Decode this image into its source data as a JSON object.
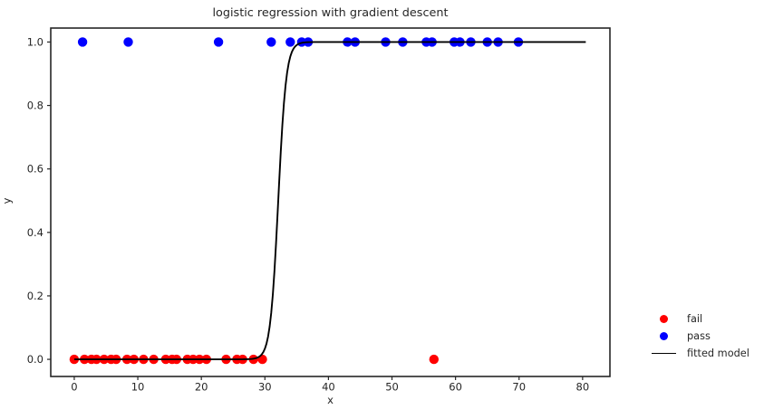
{
  "figure": {
    "title": "logistic regression with gradient descent",
    "xlabel": "x",
    "ylabel": "y"
  },
  "legend": {
    "position": "outside-right",
    "items": [
      {
        "label": "fail",
        "marker": "dot",
        "color": "#ff0000"
      },
      {
        "label": "pass",
        "marker": "dot",
        "color": "#0000ff"
      },
      {
        "label": "fitted model",
        "marker": "line",
        "color": "#000000"
      }
    ]
  },
  "chart_data": {
    "type": "scatter",
    "title": "logistic regression with gradient descent",
    "xlabel": "x",
    "ylabel": "y",
    "xlim": [
      -3.7,
      84.3
    ],
    "ylim": [
      -0.054,
      1.044
    ],
    "xticks": [
      0,
      10,
      20,
      30,
      40,
      50,
      60,
      70,
      80
    ],
    "xtick_labels": [
      "0",
      "10",
      "20",
      "30",
      "40",
      "50",
      "60",
      "70",
      "80"
    ],
    "yticks": [
      0.0,
      0.2,
      0.4,
      0.6,
      0.8,
      1.0
    ],
    "ytick_labels": [
      "0.0",
      "0.2",
      "0.4",
      "0.6",
      "0.8",
      "1.0"
    ],
    "grid": false,
    "legend_position": "outside-right",
    "colors": {
      "axis": "#262626",
      "fail": "#ff0000",
      "pass": "#0000ff",
      "curve": "#000000"
    },
    "series": [
      {
        "name": "fail",
        "color": "#ff0000",
        "y": 0,
        "x": [
          0.0,
          1.6,
          2.7,
          3.5,
          4.7,
          5.8,
          6.6,
          8.3,
          9.4,
          10.9,
          12.5,
          14.4,
          15.4,
          16.1,
          17.8,
          18.7,
          19.7,
          20.8,
          23.9,
          25.6,
          26.5,
          28.2,
          29.6,
          56.6
        ]
      },
      {
        "name": "pass",
        "color": "#0000ff",
        "y": 1,
        "x": [
          1.3,
          8.5,
          22.7,
          31.0,
          34.0,
          35.8,
          36.8,
          43.0,
          44.2,
          49.0,
          51.7,
          55.4,
          56.3,
          59.8,
          60.7,
          62.4,
          65.0,
          66.7,
          69.9
        ]
      }
    ],
    "fitted_model": {
      "name": "fitted model",
      "type": "logistic",
      "equation": "y = 1 / (1 + exp(-k*(x - x0)))",
      "x0": 32.1,
      "k": 1.6,
      "x_range": [
        0,
        80.5
      ],
      "color": "#000000"
    }
  }
}
